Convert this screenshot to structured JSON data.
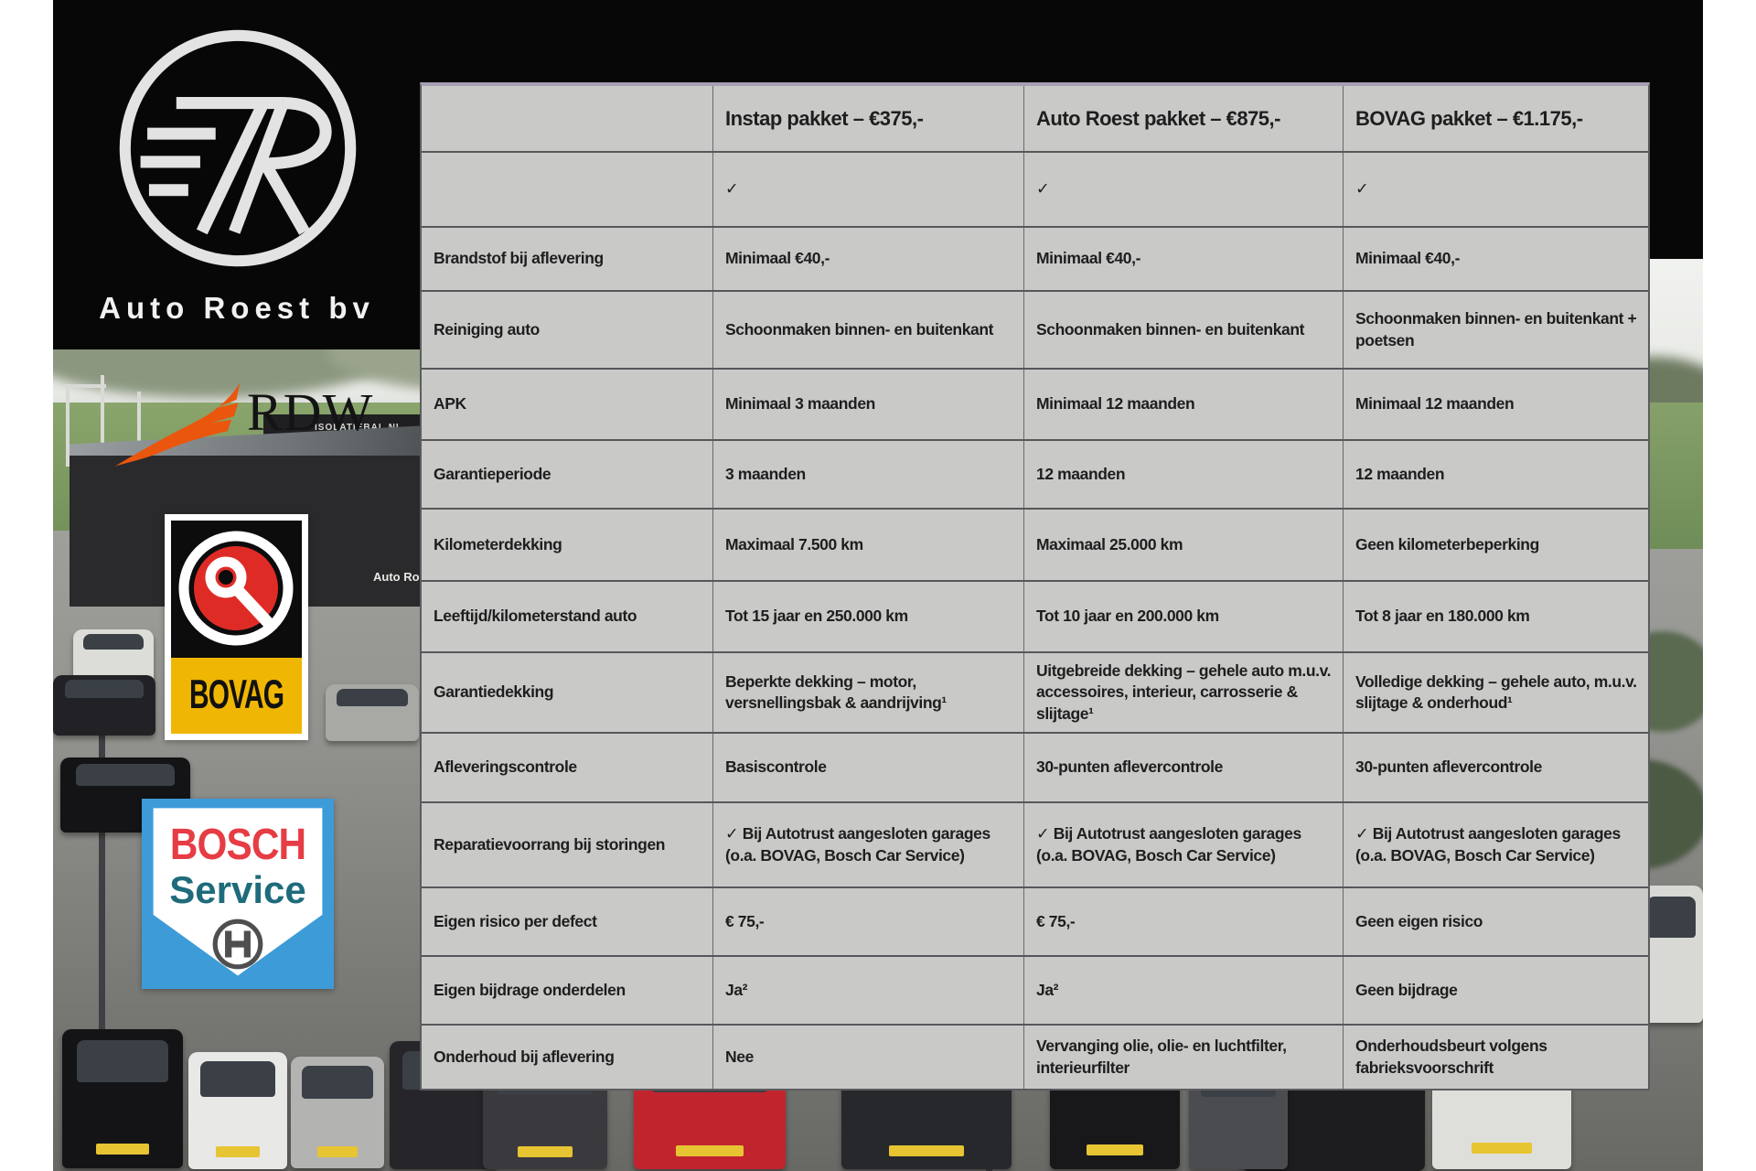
{
  "page": {
    "company": "Auto Roest bv"
  },
  "logos": {
    "auto_roest": {
      "label": "Auto Roest bv"
    },
    "rdw": {
      "label": "RDW"
    },
    "bovag": {
      "label": "BOVAG"
    },
    "bosch": {
      "line1": "BOSCH",
      "line2": "Service"
    }
  },
  "scene": {
    "building_sign": "Auto Ro",
    "building_banner": "ISOLATIEBAL.NL"
  },
  "colors": {
    "table_bg": "#c9c9c7",
    "table_border": "#5c5c60",
    "table_top_border": "#a79fb5",
    "text": "#1e1e1f",
    "masthead_black": "#070707",
    "rdw_orange": "#ea560d",
    "bovag_red": "#df2b26",
    "bovag_yellow": "#efb703",
    "bosch_blue": "#3d9bd8",
    "bosch_red": "#e63c44",
    "bosch_teal": "#1e6b7b"
  },
  "table": {
    "columns": [
      "",
      "Instap pakket – €375,-",
      "Auto Roest pakket – €875,-",
      "BOVAG pakket – €1.175,-"
    ],
    "rows": [
      {
        "label": "",
        "cells": [
          "✓",
          "✓",
          "✓"
        ]
      },
      {
        "label": "Brandstof bij aflevering",
        "cells": [
          "Minimaal €40,-",
          "Minimaal €40,-",
          "Minimaal €40,-"
        ]
      },
      {
        "label": "Reiniging auto",
        "cells": [
          "Schoonmaken binnen- en buitenkant",
          "Schoonmaken binnen- en buitenkant",
          "Schoonmaken binnen- en buitenkant + poetsen"
        ]
      },
      {
        "label": "APK",
        "cells": [
          "Minimaal 3 maanden",
          "Minimaal 12 maanden",
          "Minimaal 12 maanden"
        ]
      },
      {
        "label": "Garantieperiode",
        "cells": [
          "3 maanden",
          "12 maanden",
          "12 maanden"
        ]
      },
      {
        "label": "Kilometerdekking",
        "cells": [
          "Maximaal 7.500 km",
          "Maximaal 25.000 km",
          "Geen kilometerbeperking"
        ]
      },
      {
        "label": "Leeftijd/kilometerstand auto",
        "cells": [
          "Tot 15 jaar en 250.000 km",
          "Tot 10 jaar en 200.000 km",
          "Tot 8 jaar en 180.000 km"
        ]
      },
      {
        "label": "Garantiedekking",
        "cells": [
          "Beperkte dekking – motor, versnellingsbak & aandrijving¹",
          "Uitgebreide dekking – gehele auto m.u.v. accessoires, interieur, carrosserie & slijtage¹",
          "Volledige dekking – gehele auto, m.u.v. slijtage & onderhoud¹"
        ]
      },
      {
        "label": "Afleveringscontrole",
        "cells": [
          "Basiscontrole",
          "30-punten aflevercontrole",
          "30-punten aflevercontrole"
        ]
      },
      {
        "label": "Reparatievoorrang bij storingen",
        "cells": [
          "✓ Bij Autotrust aangesloten garages (o.a. BOVAG, Bosch Car Service)",
          "✓ Bij Autotrust aangesloten garages (o.a. BOVAG, Bosch Car Service)",
          "✓ Bij Autotrust aangesloten garages (o.a. BOVAG, Bosch Car Service)"
        ]
      },
      {
        "label": "Eigen risico per defect",
        "cells": [
          "€ 75,-",
          "€ 75,-",
          "Geen eigen risico"
        ]
      },
      {
        "label": "Eigen bijdrage onderdelen",
        "cells": [
          "Ja²",
          "Ja²",
          "Geen bijdrage"
        ]
      },
      {
        "label": "Onderhoud bij aflevering",
        "cells": [
          "Nee",
          "Vervanging olie, olie- en luchtfilter, interieurfilter",
          "Onderhoudsbeurt volgens fabrieksvoorschrift"
        ]
      }
    ]
  }
}
